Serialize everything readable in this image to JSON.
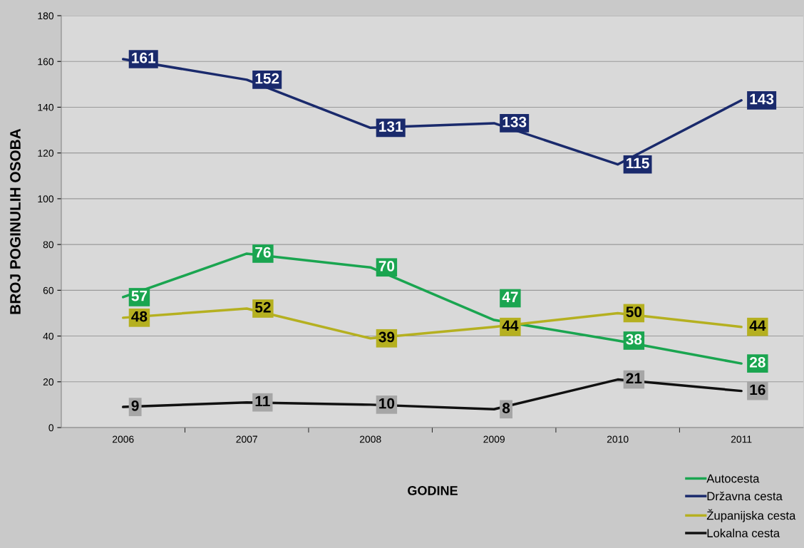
{
  "chart_data": {
    "type": "line",
    "xlabel": "GODINE",
    "ylabel": "BROJ POGINULIH OSOBA",
    "categories": [
      "2006",
      "2007",
      "2008",
      "2009",
      "2010",
      "2011"
    ],
    "series": [
      {
        "name": "Autocesta",
        "color": "#1aa550",
        "values": [
          57,
          76,
          70,
          47,
          38,
          28
        ]
      },
      {
        "name": "Državna cesta",
        "color": "#1a2a6c",
        "values": [
          161,
          152,
          131,
          133,
          115,
          143
        ]
      },
      {
        "name": "Županijska cesta",
        "color": "#b5b020",
        "values": [
          48,
          52,
          39,
          44,
          50,
          44
        ]
      },
      {
        "name": "Lokalna cesta",
        "color": "#111111",
        "values": [
          9,
          11,
          10,
          8,
          21,
          16
        ]
      }
    ],
    "ylim": [
      0,
      180
    ],
    "yticks": [
      0,
      20,
      40,
      60,
      80,
      100,
      120,
      140,
      160,
      180
    ],
    "grid": "y",
    "legend": "bottom right",
    "data_labels": true,
    "marker": "none",
    "line_style": "solid"
  }
}
